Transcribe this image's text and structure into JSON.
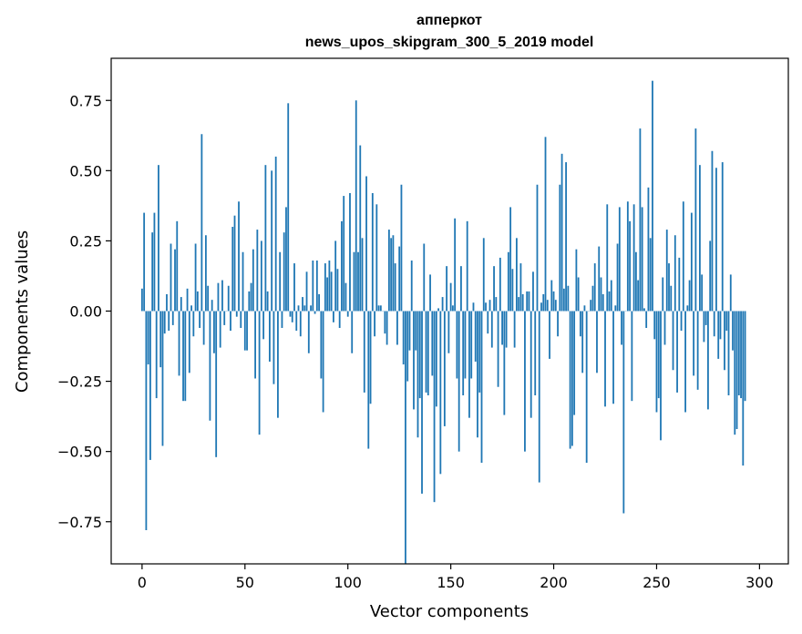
{
  "chart_data": {
    "type": "bar",
    "title_line1": "апперкот",
    "title_line2": "news_upos_skipgram_300_5_2019 model",
    "xlabel": "Vector components",
    "ylabel": "Components values",
    "xlim": [
      -15,
      314
    ],
    "ylim": [
      -0.9,
      0.9
    ],
    "x_ticks": [
      0,
      50,
      100,
      150,
      200,
      250,
      300
    ],
    "y_ticks": [
      0.75,
      0.5,
      0.25,
      0.0,
      -0.25,
      -0.5,
      -0.75
    ],
    "y_tick_labels": [
      "0.75",
      "0.50",
      "0.25",
      "0.00",
      "−0.25",
      "−0.50",
      "−0.75"
    ],
    "bar_color": "#1f77b4",
    "values": [
      0.08,
      0.35,
      -0.78,
      -0.19,
      -0.53,
      0.28,
      0.35,
      -0.31,
      0.52,
      -0.2,
      -0.48,
      -0.08,
      0.06,
      -0.07,
      0.24,
      -0.05,
      0.22,
      0.32,
      -0.23,
      0.05,
      -0.32,
      -0.32,
      0.08,
      -0.22,
      0.02,
      -0.09,
      0.24,
      0.07,
      -0.06,
      0.63,
      -0.12,
      0.27,
      0.09,
      -0.39,
      0.04,
      -0.15,
      -0.52,
      0.1,
      -0.13,
      0.11,
      -0.05,
      0.0,
      0.09,
      -0.07,
      0.3,
      0.34,
      -0.02,
      0.39,
      -0.06,
      0.21,
      -0.14,
      -0.14,
      0.07,
      0.1,
      0.22,
      -0.24,
      0.29,
      -0.44,
      0.25,
      -0.1,
      0.52,
      0.07,
      -0.18,
      0.5,
      -0.26,
      0.55,
      -0.38,
      0.21,
      -0.06,
      0.28,
      0.37,
      0.74,
      -0.02,
      -0.04,
      0.17,
      -0.07,
      0.02,
      -0.09,
      0.05,
      0.02,
      0.14,
      -0.15,
      0.02,
      0.18,
      -0.01,
      0.18,
      0.06,
      -0.24,
      -0.36,
      0.17,
      0.12,
      0.18,
      0.14,
      -0.04,
      0.25,
      0.15,
      -0.06,
      0.32,
      0.41,
      0.1,
      -0.02,
      0.42,
      -0.15,
      0.21,
      0.75,
      0.21,
      0.59,
      0.26,
      -0.29,
      0.48,
      -0.49,
      -0.33,
      0.42,
      -0.09,
      0.38,
      0.02,
      0.02,
      0.0,
      -0.08,
      -0.12,
      0.29,
      0.26,
      0.27,
      0.17,
      -0.12,
      0.23,
      0.45,
      -0.19,
      -0.9,
      -0.25,
      -0.14,
      0.18,
      -0.35,
      -0.14,
      -0.45,
      -0.31,
      -0.65,
      0.24,
      -0.29,
      -0.3,
      0.13,
      -0.23,
      -0.68,
      -0.34,
      0.01,
      -0.58,
      0.05,
      -0.41,
      0.16,
      -0.15,
      0.1,
      0.02,
      0.33,
      -0.24,
      -0.5,
      0.16,
      -0.3,
      -0.24,
      0.32,
      -0.38,
      -0.24,
      0.03,
      -0.18,
      -0.45,
      -0.29,
      -0.54,
      0.26,
      0.03,
      -0.08,
      0.04,
      -0.13,
      0.16,
      0.05,
      -0.27,
      0.19,
      -0.12,
      -0.37,
      -0.13,
      0.21,
      0.37,
      0.15,
      -0.13,
      0.26,
      0.05,
      0.17,
      0.06,
      -0.5,
      0.07,
      0.07,
      -0.38,
      0.14,
      -0.3,
      0.45,
      -0.61,
      0.03,
      0.06,
      0.62,
      0.04,
      -0.17,
      0.11,
      0.07,
      0.04,
      -0.09,
      0.45,
      0.56,
      0.08,
      0.53,
      0.09,
      -0.49,
      -0.48,
      -0.37,
      0.22,
      0.12,
      -0.09,
      -0.22,
      0.02,
      -0.54,
      0.0,
      0.04,
      0.09,
      0.17,
      -0.22,
      0.23,
      0.12,
      0.06,
      -0.34,
      0.38,
      0.07,
      0.11,
      -0.33,
      0.02,
      0.24,
      0.37,
      -0.12,
      -0.72,
      0.0,
      0.39,
      0.32,
      -0.32,
      0.38,
      0.21,
      0.11,
      0.65,
      0.37,
      0.01,
      -0.06,
      0.44,
      0.26,
      0.82,
      -0.1,
      -0.36,
      -0.31,
      -0.46,
      0.12,
      -0.12,
      0.29,
      0.17,
      0.09,
      -0.21,
      0.27,
      -0.29,
      0.19,
      -0.07,
      0.39,
      -0.36,
      0.02,
      0.11,
      0.35,
      -0.23,
      0.65,
      -0.28,
      0.52,
      0.13,
      -0.11,
      -0.05,
      -0.35,
      0.25,
      0.57,
      -0.09,
      0.51,
      -0.17,
      -0.1,
      0.53,
      -0.21,
      -0.07,
      -0.3,
      0.13,
      -0.14,
      -0.44,
      -0.42,
      -0.3,
      -0.31,
      -0.55,
      -0.32
    ]
  }
}
